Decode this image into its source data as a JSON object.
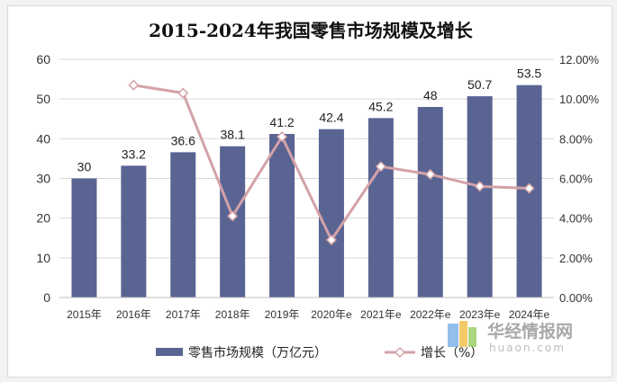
{
  "chart_data": {
    "type": "bar+line",
    "title": "2015-2024年我国零售市场规模及增长",
    "categories": [
      "2015年",
      "2016年",
      "2017年",
      "2018年",
      "2019年",
      "2020年e",
      "2021年e",
      "2022年e",
      "2023年e",
      "2024年e"
    ],
    "series": [
      {
        "name": "零售市场规模（万亿元）",
        "type": "bar",
        "axis": "left",
        "color": "#5a6493",
        "values": [
          30,
          33.2,
          36.6,
          38.1,
          41.2,
          42.4,
          45.2,
          48,
          50.7,
          53.5
        ],
        "labels": [
          "30",
          "33.2",
          "36.6",
          "38.1",
          "41.2",
          "42.4",
          "45.2",
          "48",
          "50.7",
          "53.5"
        ]
      },
      {
        "name": "增长（%）",
        "type": "line",
        "axis": "right",
        "color": "#d3a2a8",
        "values": [
          null,
          10.7,
          10.3,
          4.1,
          8.1,
          2.9,
          6.6,
          6.2,
          5.6,
          5.5
        ]
      }
    ],
    "left_axis": {
      "ylim": [
        0,
        60
      ],
      "ticks": [
        "0",
        "10",
        "20",
        "30",
        "40",
        "50",
        "60"
      ]
    },
    "right_axis": {
      "ylim": [
        0,
        12
      ],
      "ticks": [
        "0.00%",
        "2.00%",
        "4.00%",
        "6.00%",
        "8.00%",
        "10.00%",
        "12.00%"
      ]
    },
    "grid": true,
    "legend": "bottom"
  },
  "watermark": {
    "main": "华经情报网",
    "sub": "huaon.com"
  }
}
